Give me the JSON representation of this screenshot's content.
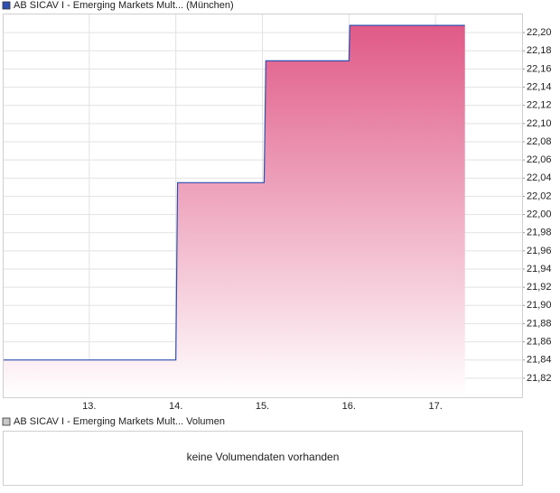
{
  "chart_data": {
    "type": "line",
    "title": "AB SICAV I - Emerging Markets Mult... (München)",
    "x": [
      12,
      14,
      14.02,
      15.02,
      15.04,
      16,
      16.01,
      17.34
    ],
    "values": [
      21.84,
      21.84,
      22.035,
      22.035,
      22.169,
      22.169,
      22.208,
      22.208
    ],
    "color": "#2f4fb0",
    "fill_color": "#e05a87",
    "xlim": [
      12,
      18
    ],
    "xticks": [
      {
        "value": 13,
        "label": "13."
      },
      {
        "value": 14,
        "label": "14."
      },
      {
        "value": 15,
        "label": "15."
      },
      {
        "value": 16,
        "label": "16."
      },
      {
        "value": 17,
        "label": "17."
      }
    ],
    "ylim": [
      21.799,
      22.221
    ],
    "yticks": [
      {
        "value": 21.82,
        "label": "21,82"
      },
      {
        "value": 21.84,
        "label": "21,84"
      },
      {
        "value": 21.86,
        "label": "21,86"
      },
      {
        "value": 21.88,
        "label": "21,88"
      },
      {
        "value": 21.9,
        "label": "21,90"
      },
      {
        "value": 21.92,
        "label": "21,92"
      },
      {
        "value": 21.94,
        "label": "21,94"
      },
      {
        "value": 21.96,
        "label": "21,96"
      },
      {
        "value": 21.98,
        "label": "21,98"
      },
      {
        "value": 22.0,
        "label": "22,00"
      },
      {
        "value": 22.02,
        "label": "22,02"
      },
      {
        "value": 22.04,
        "label": "22,04"
      },
      {
        "value": 22.06,
        "label": "22,06"
      },
      {
        "value": 22.08,
        "label": "22,08"
      },
      {
        "value": 22.1,
        "label": "22,10"
      },
      {
        "value": 22.12,
        "label": "22,12"
      },
      {
        "value": 22.14,
        "label": "22,14"
      },
      {
        "value": 22.16,
        "label": "22,16"
      },
      {
        "value": 22.18,
        "label": "22,18"
      },
      {
        "value": 22.2,
        "label": "22,20"
      }
    ],
    "grid": true
  },
  "volume_panel": {
    "title": "AB SICAV I - Emerging Markets Mult... Volumen",
    "message": "keine Volumendaten vorhanden"
  }
}
